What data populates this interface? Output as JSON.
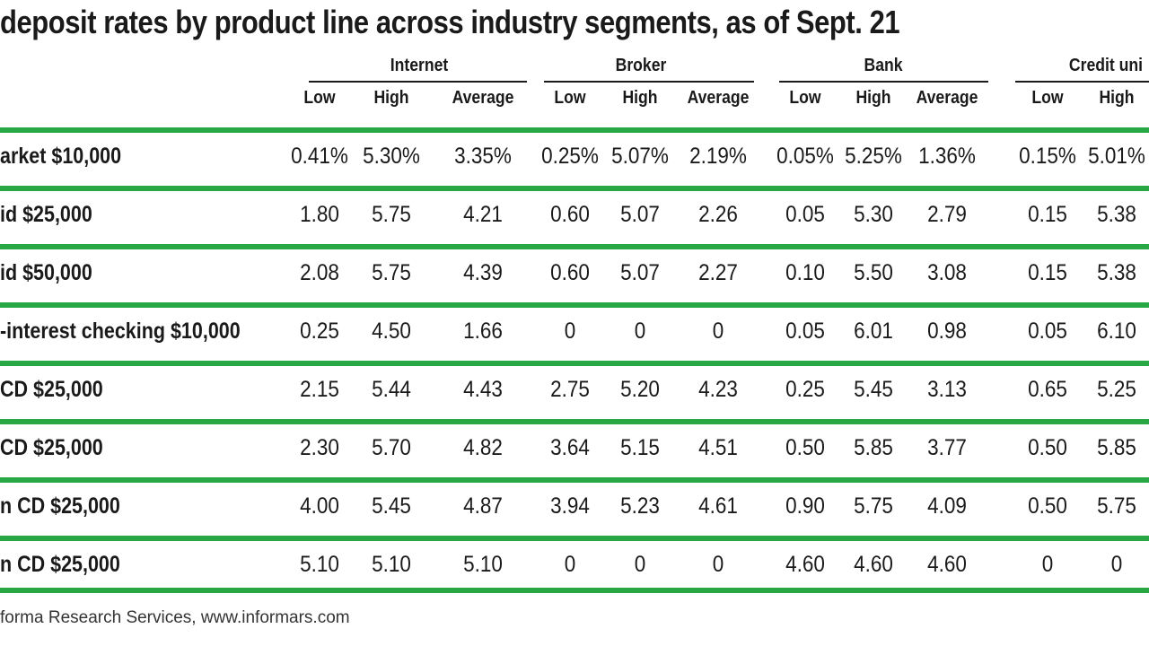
{
  "title": "deposit rates by product line across industry segments, as of Sept. 21",
  "groups": [
    "Internet",
    "Broker",
    "Bank",
    "Credit uni"
  ],
  "subheads": [
    "Low",
    "High",
    "Average",
    "Low",
    "High",
    "Average",
    "Low",
    "High",
    "Average",
    "Low",
    "High"
  ],
  "rows": [
    {
      "label": "arket $10,000",
      "values": [
        "0.41%",
        "5.30%",
        "3.35%",
        "0.25%",
        "5.07%",
        "2.19%",
        "0.05%",
        "5.25%",
        "1.36%",
        "0.15%",
        "5.01%"
      ]
    },
    {
      "label": "id $25,000",
      "values": [
        "1.80",
        "5.75",
        "4.21",
        "0.60",
        "5.07",
        "2.26",
        "0.05",
        "5.30",
        "2.79",
        "0.15",
        "5.38"
      ]
    },
    {
      "label": "id $50,000",
      "values": [
        "2.08",
        "5.75",
        "4.39",
        "0.60",
        "5.07",
        "2.27",
        "0.10",
        "5.50",
        "3.08",
        "0.15",
        "5.38"
      ]
    },
    {
      "label": "-interest checking $10,000",
      "values": [
        "0.25",
        "4.50",
        "1.66",
        "0",
        "0",
        "0",
        "0.05",
        "6.01",
        "0.98",
        "0.05",
        "6.10"
      ]
    },
    {
      "label": "CD $25,000",
      "values": [
        "2.15",
        "5.44",
        "4.43",
        "2.75",
        "5.20",
        "4.23",
        "0.25",
        "5.45",
        "3.13",
        "0.65",
        "5.25"
      ]
    },
    {
      "label": "CD $25,000",
      "values": [
        "2.30",
        "5.70",
        "4.82",
        "3.64",
        "5.15",
        "4.51",
        "0.50",
        "5.85",
        "3.77",
        "0.50",
        "5.85"
      ]
    },
    {
      "label": "n CD $25,000",
      "values": [
        "4.00",
        "5.45",
        "4.87",
        "3.94",
        "5.23",
        "4.61",
        "0.90",
        "5.75",
        "4.09",
        "0.50",
        "5.75"
      ]
    },
    {
      "label": "n CD $25,000",
      "values": [
        "5.10",
        "5.10",
        "5.10",
        "0",
        "0",
        "0",
        "4.60",
        "4.60",
        "4.60",
        "0",
        "0"
      ]
    }
  ],
  "source": "forma Research Services, www.informars.com",
  "colors": {
    "rule": "#27a844",
    "text": "#1a1a1a"
  }
}
